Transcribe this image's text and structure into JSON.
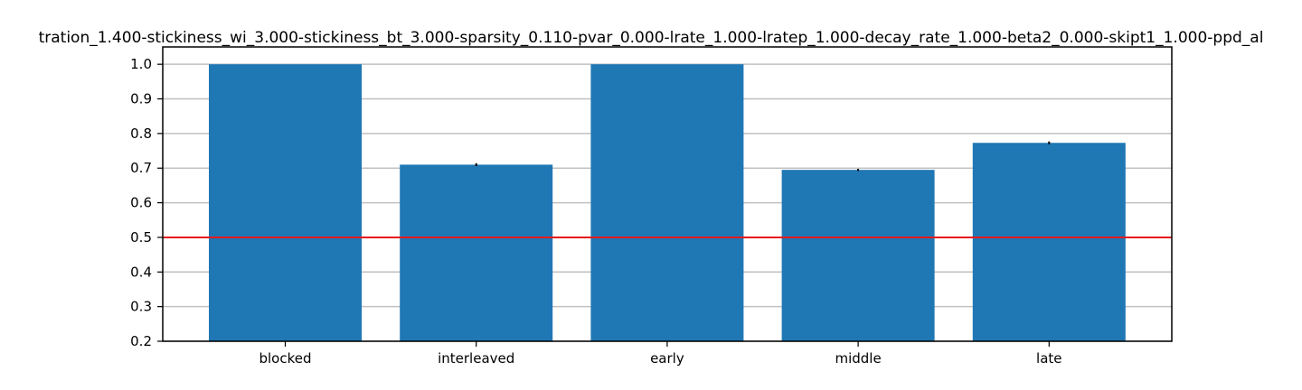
{
  "chart_data": {
    "type": "bar",
    "title": "tration_1.400-stickiness_wi_3.000-stickiness_bt_3.000-sparsity_0.110-pvar_0.000-lrate_1.000-lratep_1.000-decay_rate_1.000-beta2_0.000-skipt1_1.000-ppd_al",
    "xlabel": "",
    "ylabel": "",
    "categories": [
      "blocked",
      "interleaved",
      "early",
      "middle",
      "late"
    ],
    "values": [
      1.0,
      0.71,
      1.0,
      0.695,
      0.773
    ],
    "errors": [
      0.0,
      0.004,
      0.0,
      0.003,
      0.004
    ],
    "ylim": [
      0.2,
      1.05
    ],
    "yticks": [
      "0.2",
      "0.3",
      "0.4",
      "0.5",
      "0.6",
      "0.7",
      "0.8",
      "0.9",
      "1.0"
    ],
    "reference_line": 0.5,
    "grid": "horizontal",
    "colors": {
      "bar": "#1f77b4",
      "reference_line": "#e41a1c",
      "grid": "#c0c0c0",
      "error_bar": "#000000",
      "axes": "#000000"
    }
  }
}
